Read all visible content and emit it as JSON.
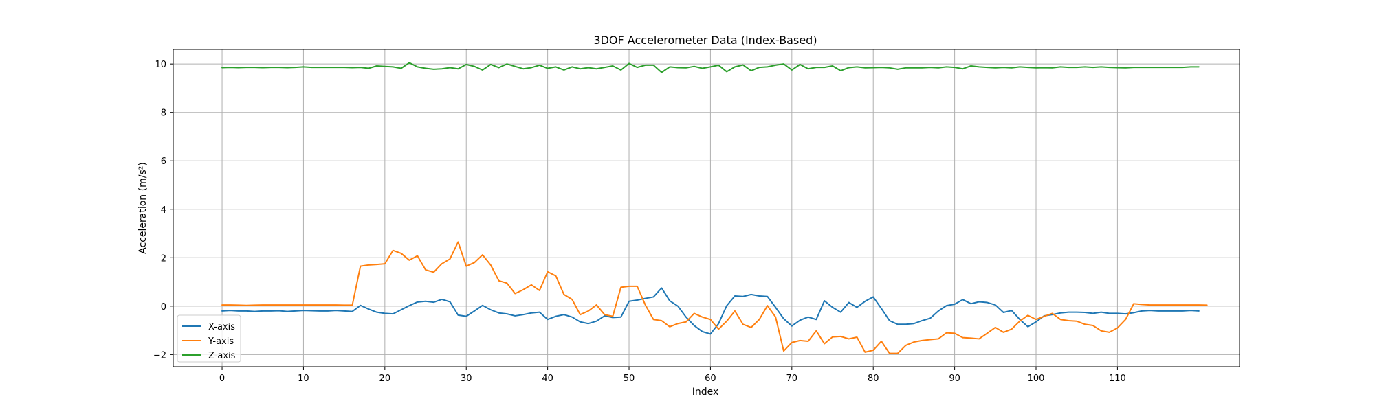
{
  "chart_data": {
    "type": "line",
    "title": "3DOF Accelerometer Data (Index-Based)",
    "xlabel": "Index",
    "ylabel": "Acceleration (m/s²)",
    "xlim": [
      -6,
      125
    ],
    "ylim": [
      -2.5,
      10.6
    ],
    "xticks": [
      0,
      10,
      20,
      30,
      40,
      50,
      60,
      70,
      80,
      90,
      100,
      110
    ],
    "yticks": [
      -2,
      0,
      2,
      4,
      6,
      8,
      10
    ],
    "grid": true,
    "legend_position": "lower-left",
    "series": [
      {
        "name": "X-axis",
        "color": "#1f77b4",
        "values": [
          -0.2,
          -0.18,
          -0.2,
          -0.2,
          -0.22,
          -0.2,
          -0.2,
          -0.19,
          -0.22,
          -0.2,
          -0.18,
          -0.19,
          -0.2,
          -0.2,
          -0.18,
          -0.2,
          -0.22,
          0.03,
          -0.12,
          -0.25,
          -0.3,
          -0.32,
          -0.15,
          0.02,
          0.17,
          0.2,
          0.16,
          0.28,
          0.18,
          -0.37,
          -0.42,
          -0.2,
          0.03,
          -0.15,
          -0.28,
          -0.32,
          -0.4,
          -0.35,
          -0.28,
          -0.25,
          -0.55,
          -0.42,
          -0.35,
          -0.45,
          -0.65,
          -0.72,
          -0.62,
          -0.4,
          -0.47,
          -0.45,
          0.2,
          0.25,
          0.32,
          0.38,
          0.75,
          0.22,
          0.0,
          -0.45,
          -0.8,
          -1.05,
          -1.15,
          -0.72,
          0.02,
          0.42,
          0.4,
          0.48,
          0.42,
          0.4,
          -0.05,
          -0.52,
          -0.82,
          -0.58,
          -0.45,
          -0.55,
          0.22,
          -0.05,
          -0.25,
          0.15,
          -0.05,
          0.2,
          0.38,
          -0.1,
          -0.6,
          -0.75,
          -0.75,
          -0.72,
          -0.6,
          -0.5,
          -0.2,
          0.02,
          0.08,
          0.27,
          0.1,
          0.18,
          0.15,
          0.05,
          -0.26,
          -0.18,
          -0.55,
          -0.85,
          -0.65,
          -0.4,
          -0.35,
          -0.28,
          -0.25,
          -0.25,
          -0.26,
          -0.3,
          -0.25,
          -0.3,
          -0.3,
          -0.32,
          -0.27,
          -0.2,
          -0.18,
          -0.2,
          -0.2,
          -0.2,
          -0.2,
          -0.18,
          -0.2
        ]
      },
      {
        "name": "Y-axis",
        "color": "#ff7f0e",
        "values": [
          0.05,
          0.05,
          0.04,
          0.03,
          0.04,
          0.05,
          0.05,
          0.05,
          0.05,
          0.05,
          0.05,
          0.05,
          0.05,
          0.05,
          0.05,
          0.04,
          0.04,
          1.65,
          1.7,
          1.72,
          1.75,
          2.3,
          2.18,
          1.9,
          2.08,
          1.5,
          1.4,
          1.75,
          1.95,
          2.65,
          1.65,
          1.8,
          2.12,
          1.7,
          1.05,
          0.95,
          0.52,
          0.68,
          0.88,
          0.65,
          1.42,
          1.25,
          0.48,
          0.28,
          -0.35,
          -0.2,
          0.05,
          -0.35,
          -0.42,
          0.78,
          0.82,
          0.82,
          0.05,
          -0.55,
          -0.6,
          -0.85,
          -0.72,
          -0.65,
          -0.3,
          -0.45,
          -0.55,
          -0.95,
          -0.62,
          -0.2,
          -0.75,
          -0.88,
          -0.55,
          0.02,
          -0.45,
          -1.85,
          -1.5,
          -1.42,
          -1.45,
          -1.02,
          -1.55,
          -1.27,
          -1.25,
          -1.35,
          -1.28,
          -1.9,
          -1.82,
          -1.45,
          -1.95,
          -1.95,
          -1.62,
          -1.48,
          -1.42,
          -1.38,
          -1.35,
          -1.1,
          -1.12,
          -1.3,
          -1.32,
          -1.35,
          -1.12,
          -0.88,
          -1.08,
          -0.95,
          -0.62,
          -0.38,
          -0.55,
          -0.42,
          -0.3,
          -0.55,
          -0.6,
          -0.62,
          -0.75,
          -0.8,
          -1.02,
          -1.08,
          -0.9,
          -0.55,
          0.1,
          0.07,
          0.05,
          0.05,
          0.05,
          0.05,
          0.05,
          0.05,
          0.05,
          0.04
        ]
      },
      {
        "name": "Z-axis",
        "color": "#2ca02c",
        "values": [
          9.85,
          9.86,
          9.85,
          9.86,
          9.86,
          9.85,
          9.86,
          9.86,
          9.85,
          9.86,
          9.88,
          9.86,
          9.86,
          9.86,
          9.86,
          9.86,
          9.85,
          9.86,
          9.82,
          9.92,
          9.9,
          9.88,
          9.82,
          10.05,
          9.88,
          9.82,
          9.78,
          9.8,
          9.85,
          9.8,
          9.98,
          9.9,
          9.75,
          9.98,
          9.85,
          10.0,
          9.9,
          9.8,
          9.85,
          9.95,
          9.82,
          9.88,
          9.75,
          9.88,
          9.8,
          9.85,
          9.8,
          9.86,
          9.92,
          9.75,
          10.02,
          9.86,
          9.95,
          9.95,
          9.65,
          9.88,
          9.85,
          9.84,
          9.9,
          9.82,
          9.88,
          9.95,
          9.68,
          9.88,
          9.96,
          9.72,
          9.86,
          9.88,
          9.95,
          10.0,
          9.75,
          9.98,
          9.8,
          9.86,
          9.86,
          9.92,
          9.72,
          9.85,
          9.88,
          9.84,
          9.85,
          9.86,
          9.84,
          9.78,
          9.84,
          9.84,
          9.84,
          9.86,
          9.84,
          9.88,
          9.86,
          9.8,
          9.92,
          9.88,
          9.86,
          9.84,
          9.86,
          9.84,
          9.88,
          9.86,
          9.84,
          9.85,
          9.84,
          9.88,
          9.86,
          9.86,
          9.88,
          9.86,
          9.88,
          9.86,
          9.85,
          9.84,
          9.86,
          9.86,
          9.86,
          9.86,
          9.86,
          9.86,
          9.86,
          9.88,
          9.88
        ]
      }
    ]
  }
}
